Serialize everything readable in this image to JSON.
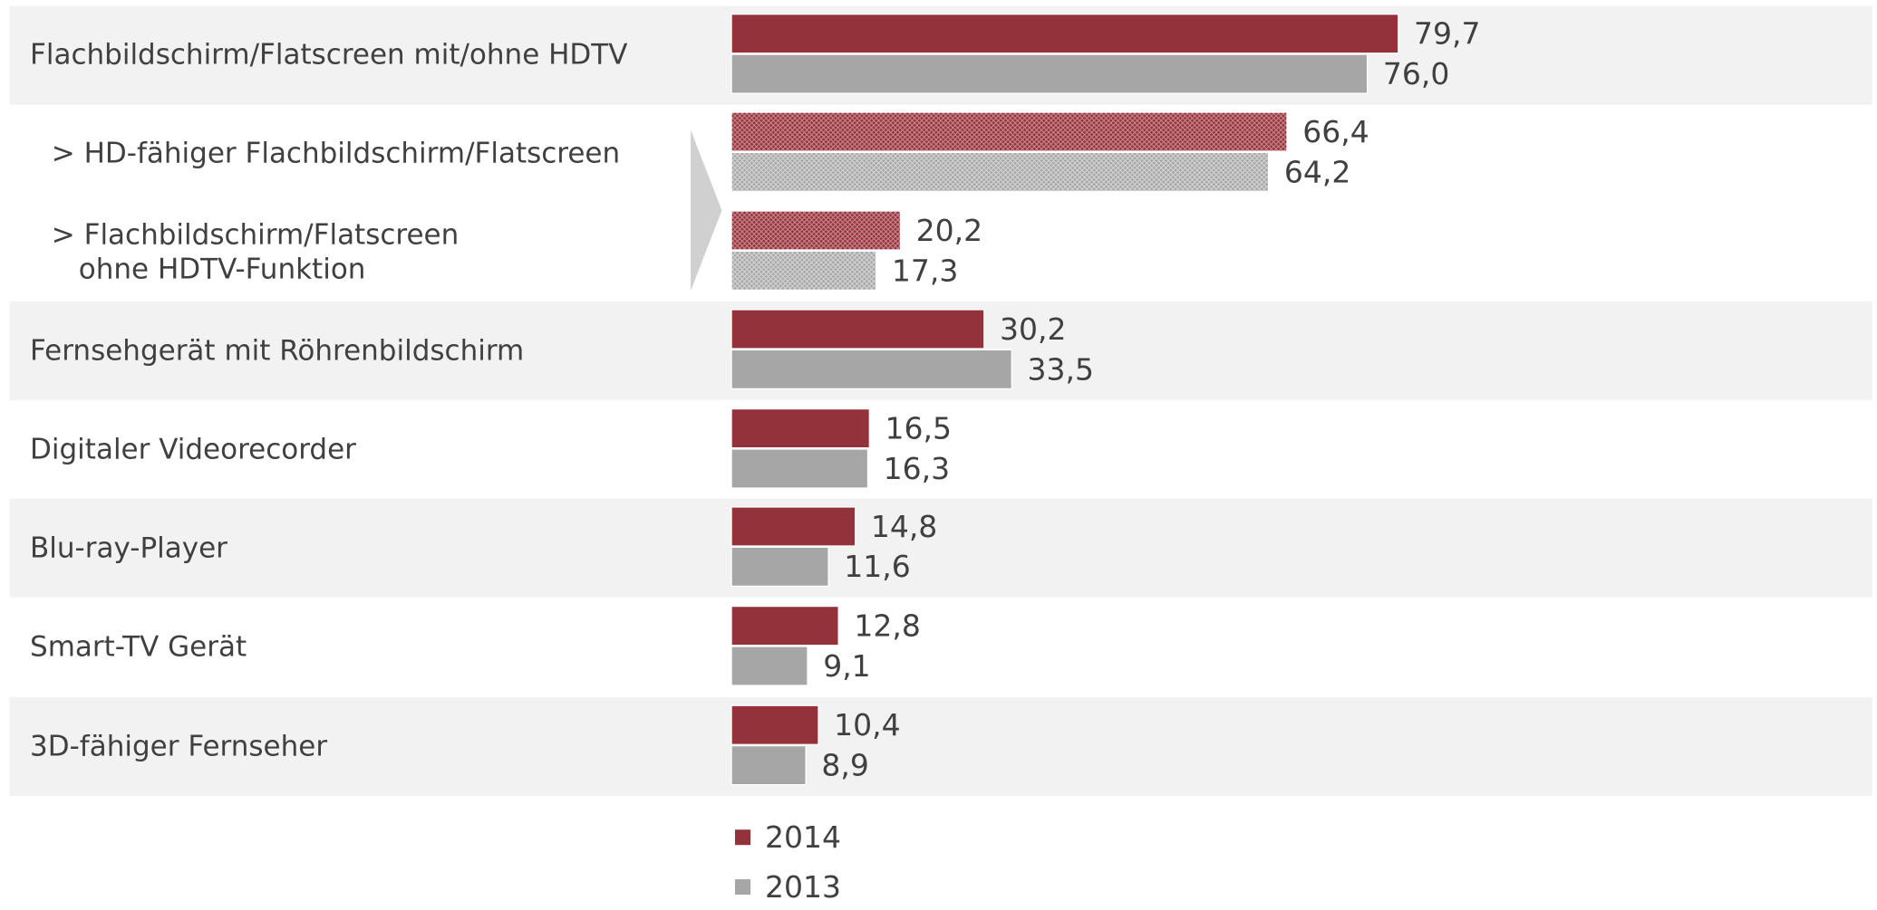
{
  "chart_data": {
    "type": "bar",
    "orientation": "horizontal",
    "categories": [
      "Flachbildschirm/Flatscreen mit/ohne HDTV",
      "> HD-fähiger Flachbildschirm/Flatscreen",
      "> Flachbildschirm/Flatscreen\nohne HDTV-Funktion",
      "Fernsehgerät mit Röhrenbildschirm",
      "Digitaler Videorecorder",
      "Blu-ray-Player",
      "Smart-TV Gerät",
      "3D-fähiger Fernseher"
    ],
    "series": [
      {
        "name": "2014",
        "color": "#94323c",
        "values": [
          79.7,
          66.4,
          20.2,
          30.2,
          16.5,
          14.8,
          12.8,
          10.4
        ],
        "value_labels": [
          "79,7",
          "66,4",
          "20,2",
          "30,2",
          "16,5",
          "14,8",
          "12,8",
          "10,4"
        ]
      },
      {
        "name": "2013",
        "color": "#a6a6a6",
        "values": [
          76.0,
          64.2,
          17.3,
          33.5,
          16.3,
          11.6,
          9.1,
          8.9
        ],
        "value_labels": [
          "76,0",
          "64,2",
          "17,3",
          "33,5",
          "16,3",
          "11,6",
          "9,1",
          "8,9"
        ]
      }
    ],
    "xlim": [
      0,
      100
    ],
    "hatched_categories": [
      1,
      2
    ],
    "legend": "bottom"
  }
}
